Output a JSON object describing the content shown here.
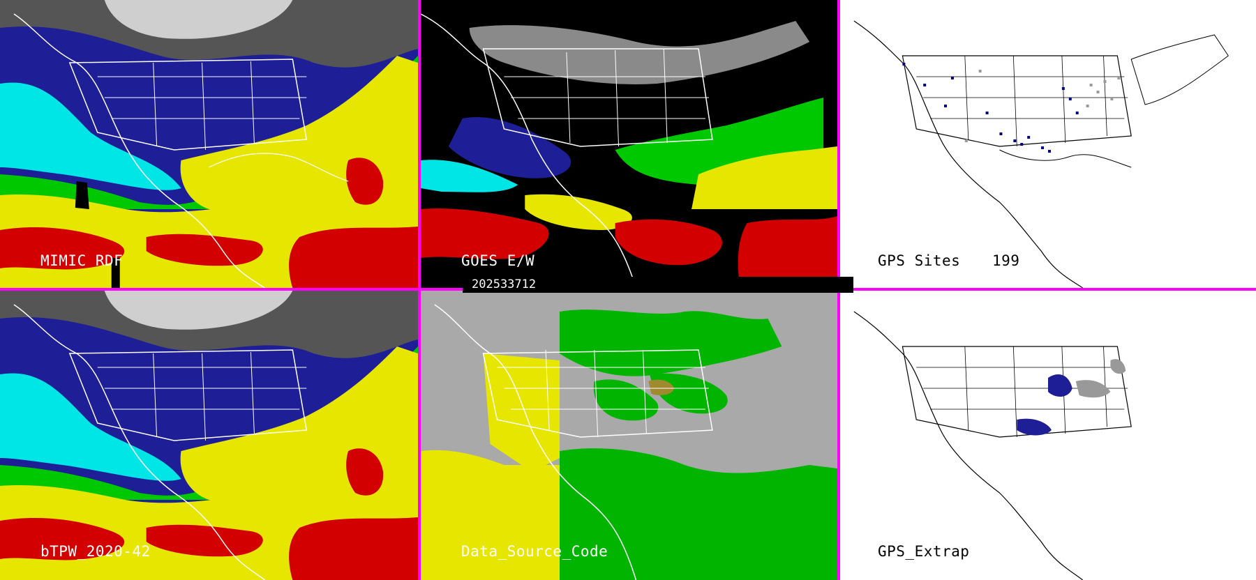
{
  "panels": [
    {
      "id": "mimic",
      "label": "MIMIC RDF",
      "style": "tpw"
    },
    {
      "id": "goes",
      "label": "GOES E/W",
      "style": "goes"
    },
    {
      "id": "gps",
      "label": "GPS Sites",
      "count": "199",
      "style": "gps"
    },
    {
      "id": "btpw",
      "label": "bTPW_2020-42",
      "style": "tpw"
    },
    {
      "id": "dsc",
      "label": "Data_Source_Code",
      "style": "dsc"
    },
    {
      "id": "gpsx",
      "label": "GPS_Extrap",
      "style": "gpsx"
    }
  ],
  "timestamp": "202533712",
  "colors": {
    "border": "#ff00ff",
    "tpw_dry": "#1e1e96",
    "tpw_low": "#00e6e6",
    "tpw_mid": "#00c800",
    "tpw_high": "#e6e600",
    "tpw_very_high": "#d20000",
    "goes_background": "#000000",
    "gps_background": "#ffffff",
    "site_marker": "#000080",
    "dsc_background": "#a9a9a9",
    "dsc_green": "#00b400",
    "dsc_yellow": "#e6e600"
  }
}
